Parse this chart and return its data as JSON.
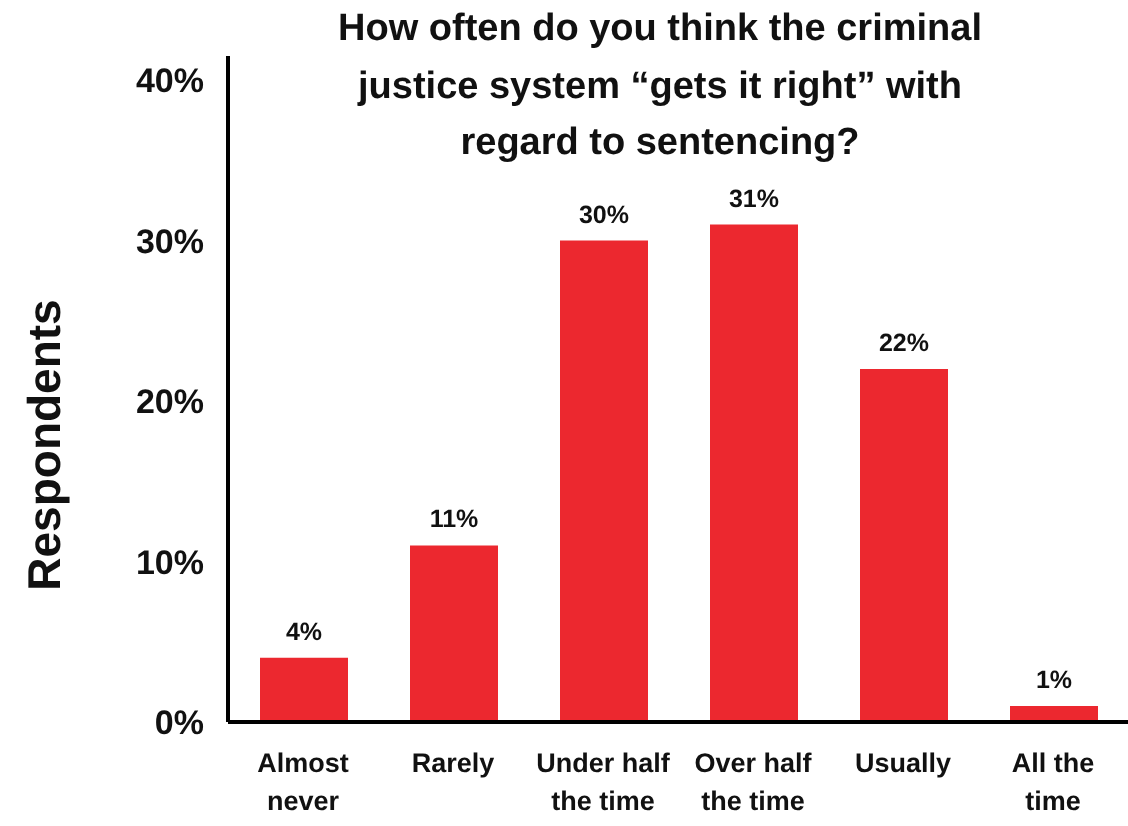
{
  "chart_data": {
    "type": "bar",
    "title": "How often do you think the criminal justice system “gets it right” with regard to sentencing?",
    "ylabel": "Respondents",
    "categories": [
      "Almost never",
      "Rarely",
      "Under half the time",
      "Over half the time",
      "Usually",
      "All the time"
    ],
    "values": [
      4,
      11,
      30,
      31,
      22,
      1
    ],
    "value_labels": [
      "4%",
      "11%",
      "30%",
      "31%",
      "22%",
      "1%"
    ],
    "color": "#ec282f",
    "ylim": [
      0,
      41.5
    ],
    "yticks": [
      {
        "value": 0,
        "label": "0%"
      },
      {
        "value": 10,
        "label": "10%"
      },
      {
        "value": 20,
        "label": "20%"
      },
      {
        "value": 30,
        "label": "30%"
      },
      {
        "value": 40,
        "label": "40%"
      }
    ]
  }
}
